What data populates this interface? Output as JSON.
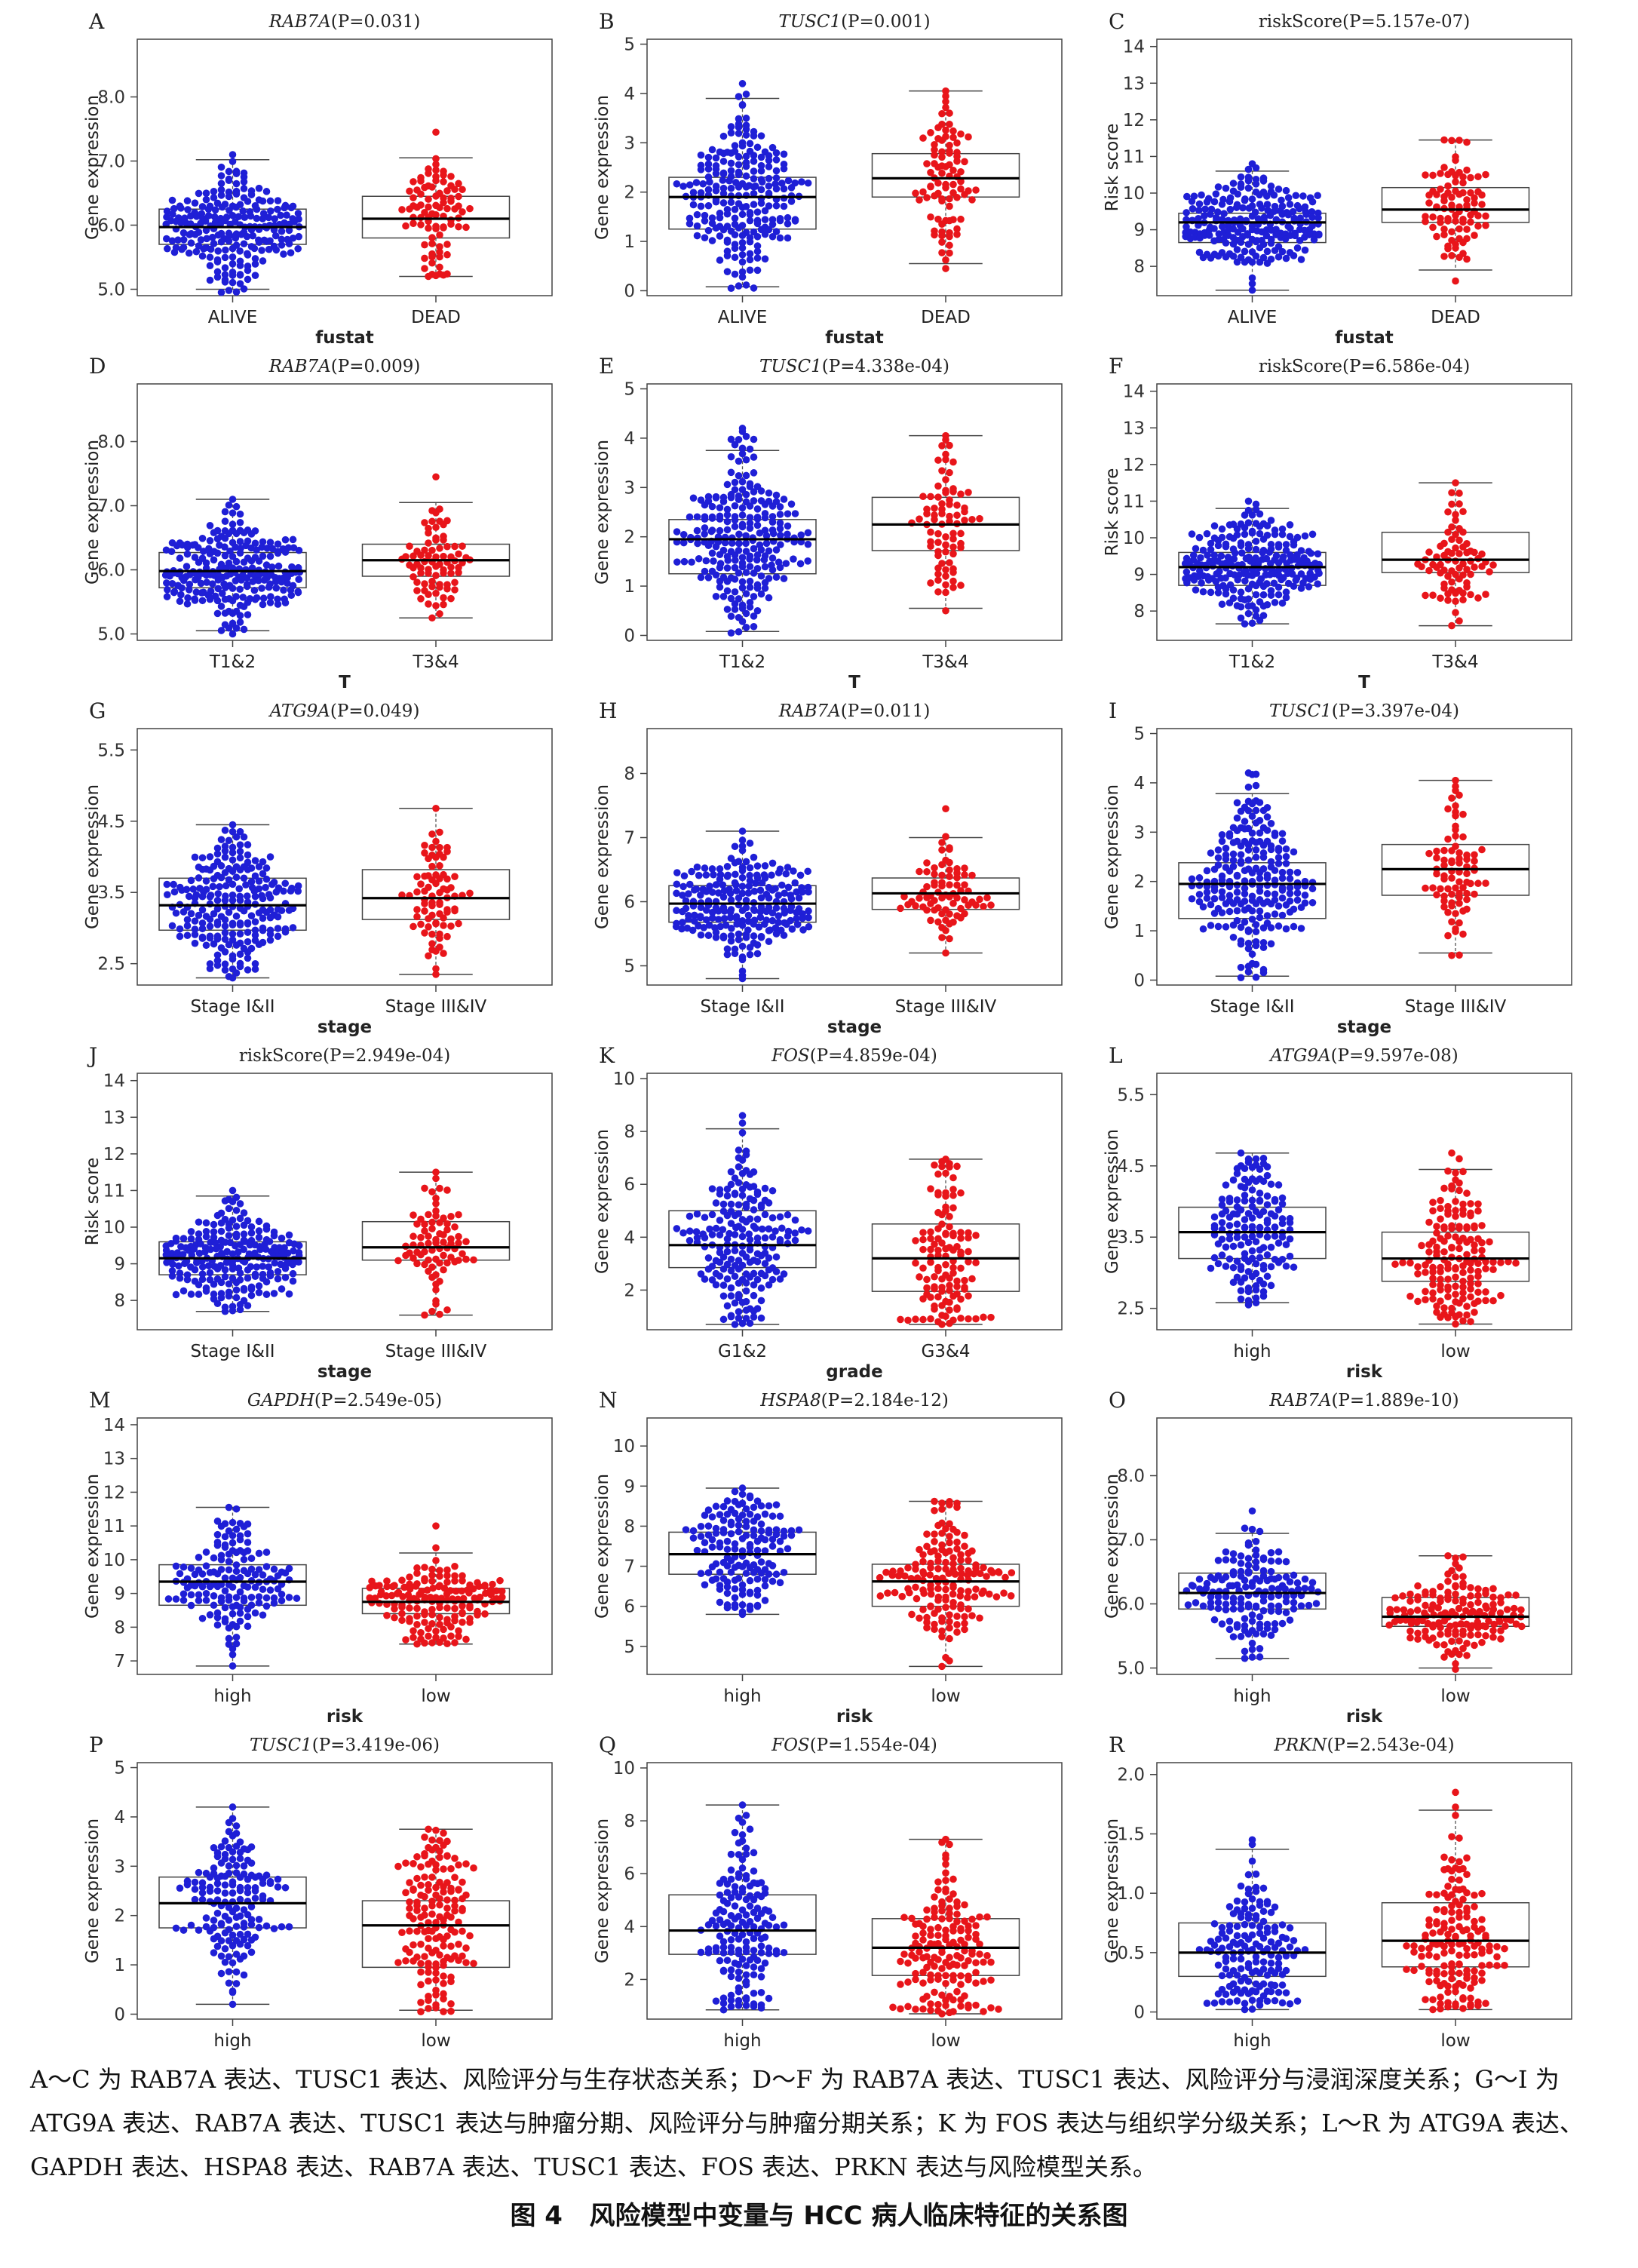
{
  "chart_data": [
    {
      "panel": "A",
      "gene": "RAB7A",
      "p": "(P=0.031)",
      "italic": true,
      "ylabel": "Gene expression",
      "xlabel": "fustat",
      "ylim": [
        4.9,
        8.9
      ],
      "yticks": [
        "5.0",
        "6.0",
        "7.0",
        "8.0"
      ],
      "groups": [
        {
          "name": "ALIVE",
          "color": "#1f1fd6",
          "min": 5.0,
          "q1": 5.7,
          "median": 5.97,
          "q3": 6.25,
          "max": 7.02,
          "top": 7.1,
          "bottom": 4.95,
          "n": 230
        },
        {
          "name": "DEAD",
          "color": "#e8151a",
          "min": 5.2,
          "q1": 5.8,
          "median": 6.1,
          "q3": 6.45,
          "max": 7.05,
          "top": 7.45,
          "bottom": 5.2,
          "n": 90
        }
      ]
    },
    {
      "panel": "B",
      "gene": "TUSC1",
      "p": "(P=0.001)",
      "italic": true,
      "ylabel": "Gene expression",
      "xlabel": "fustat",
      "ylim": [
        -0.1,
        5.1
      ],
      "yticks": [
        "0",
        "1",
        "2",
        "3",
        "4",
        "5"
      ],
      "groups": [
        {
          "name": "ALIVE",
          "color": "#1f1fd6",
          "min": 0.08,
          "q1": 1.25,
          "median": 1.9,
          "q3": 2.3,
          "max": 3.9,
          "top": 4.2,
          "bottom": 0.05,
          "n": 230
        },
        {
          "name": "DEAD",
          "color": "#e8151a",
          "min": 0.55,
          "q1": 1.9,
          "median": 2.28,
          "q3": 2.78,
          "max": 4.05,
          "top": 4.05,
          "bottom": 0.45,
          "n": 90
        }
      ]
    },
    {
      "panel": "C",
      "gene": "riskScore",
      "p": "(P=5.157e-07)",
      "italic": false,
      "ylabel": "Risk score",
      "xlabel": "fustat",
      "ylim": [
        7.2,
        14.2
      ],
      "yticks": [
        "8",
        "9",
        "10",
        "11",
        "12",
        "13",
        "14"
      ],
      "groups": [
        {
          "name": "ALIVE",
          "color": "#1f1fd6",
          "min": 7.35,
          "q1": 8.65,
          "median": 9.2,
          "q3": 9.45,
          "max": 10.6,
          "top": 10.8,
          "bottom": 7.35,
          "n": 230
        },
        {
          "name": "DEAD",
          "color": "#e8151a",
          "min": 7.9,
          "q1": 9.2,
          "median": 9.55,
          "q3": 10.15,
          "max": 11.45,
          "top": 11.45,
          "bottom": 7.6,
          "n": 90
        }
      ]
    },
    {
      "panel": "D",
      "gene": "RAB7A",
      "p": "(P=0.009)",
      "italic": true,
      "ylabel": "Gene expression",
      "xlabel": "T",
      "ylim": [
        4.9,
        8.9
      ],
      "yticks": [
        "5.0",
        "6.0",
        "7.0",
        "8.0"
      ],
      "groups": [
        {
          "name": "T1&2",
          "color": "#1f1fd6",
          "min": 5.05,
          "q1": 5.72,
          "median": 5.98,
          "q3": 6.27,
          "max": 7.1,
          "top": 7.1,
          "bottom": 5.0,
          "n": 240
        },
        {
          "name": "T3&4",
          "color": "#e8151a",
          "min": 5.25,
          "q1": 5.9,
          "median": 6.15,
          "q3": 6.4,
          "max": 7.05,
          "top": 7.45,
          "bottom": 5.25,
          "n": 80
        }
      ]
    },
    {
      "panel": "E",
      "gene": "TUSC1",
      "p": "(P=4.338e-04)",
      "italic": true,
      "ylabel": "Gene expression",
      "xlabel": "T",
      "ylim": [
        -0.1,
        5.1
      ],
      "yticks": [
        "0",
        "1",
        "2",
        "3",
        "4",
        "5"
      ],
      "groups": [
        {
          "name": "T1&2",
          "color": "#1f1fd6",
          "min": 0.08,
          "q1": 1.25,
          "median": 1.95,
          "q3": 2.35,
          "max": 3.75,
          "top": 4.2,
          "bottom": 0.05,
          "n": 240
        },
        {
          "name": "T3&4",
          "color": "#e8151a",
          "min": 0.55,
          "q1": 1.72,
          "median": 2.25,
          "q3": 2.8,
          "max": 4.05,
          "top": 4.05,
          "bottom": 0.5,
          "n": 80
        }
      ]
    },
    {
      "panel": "F",
      "gene": "riskScore",
      "p": "(P=6.586e-04)",
      "italic": false,
      "ylabel": "Risk score",
      "xlabel": "T",
      "ylim": [
        7.2,
        14.2
      ],
      "yticks": [
        "8",
        "9",
        "10",
        "11",
        "12",
        "13",
        "14"
      ],
      "groups": [
        {
          "name": "T1&2",
          "color": "#1f1fd6",
          "min": 7.65,
          "q1": 8.7,
          "median": 9.2,
          "q3": 9.6,
          "max": 10.8,
          "top": 11.0,
          "bottom": 7.65,
          "n": 240
        },
        {
          "name": "T3&4",
          "color": "#e8151a",
          "min": 7.6,
          "q1": 9.05,
          "median": 9.4,
          "q3": 10.15,
          "max": 11.5,
          "top": 11.5,
          "bottom": 7.6,
          "n": 80
        }
      ]
    },
    {
      "panel": "G",
      "gene": "ATG9A",
      "p": "(P=0.049)",
      "italic": true,
      "ylabel": "Gene expression",
      "xlabel": "stage",
      "ylim": [
        2.2,
        5.8
      ],
      "yticks": [
        "2.5",
        "3.5",
        "4.5",
        "5.5"
      ],
      "groups": [
        {
          "name": "Stage I&II",
          "color": "#1f1fd6",
          "min": 2.3,
          "q1": 2.97,
          "median": 3.32,
          "q3": 3.7,
          "max": 4.45,
          "top": 4.45,
          "bottom": 2.3,
          "n": 230
        },
        {
          "name": "Stage III&IV",
          "color": "#e8151a",
          "min": 2.35,
          "q1": 3.12,
          "median": 3.42,
          "q3": 3.82,
          "max": 4.68,
          "top": 4.68,
          "bottom": 2.35,
          "n": 80
        }
      ]
    },
    {
      "panel": "H",
      "gene": "RAB7A",
      "p": "(P=0.011)",
      "italic": true,
      "ylabel": "Gene expression",
      "xlabel": "stage",
      "ylim": [
        4.7,
        8.7
      ],
      "yticks": [
        "5",
        "6",
        "7",
        "8"
      ],
      "groups": [
        {
          "name": "Stage I&II",
          "color": "#1f1fd6",
          "min": 4.8,
          "q1": 5.68,
          "median": 5.97,
          "q3": 6.25,
          "max": 7.1,
          "top": 7.1,
          "bottom": 4.8,
          "n": 230
        },
        {
          "name": "Stage III&IV",
          "color": "#e8151a",
          "min": 5.2,
          "q1": 5.88,
          "median": 6.13,
          "q3": 6.37,
          "max": 7.0,
          "top": 7.45,
          "bottom": 5.2,
          "n": 80
        }
      ]
    },
    {
      "panel": "I",
      "gene": "TUSC1",
      "p": "(P=3.397e-04)",
      "italic": true,
      "ylabel": "Gene expression",
      "xlabel": "stage",
      "ylim": [
        -0.1,
        5.1
      ],
      "yticks": [
        "0",
        "1",
        "2",
        "3",
        "4",
        "5"
      ],
      "groups": [
        {
          "name": "Stage I&II",
          "color": "#1f1fd6",
          "min": 0.08,
          "q1": 1.25,
          "median": 1.95,
          "q3": 2.38,
          "max": 3.78,
          "top": 4.2,
          "bottom": 0.05,
          "n": 230
        },
        {
          "name": "Stage III&IV",
          "color": "#e8151a",
          "min": 0.55,
          "q1": 1.72,
          "median": 2.25,
          "q3": 2.75,
          "max": 4.05,
          "top": 4.05,
          "bottom": 0.5,
          "n": 80
        }
      ]
    },
    {
      "panel": "J",
      "gene": "riskScore",
      "p": "(P=2.949e-04)",
      "italic": false,
      "ylabel": "Risk score",
      "xlabel": "stage",
      "ylim": [
        7.2,
        14.2
      ],
      "yticks": [
        "8",
        "9",
        "10",
        "11",
        "12",
        "13",
        "14"
      ],
      "groups": [
        {
          "name": "Stage I&II",
          "color": "#1f1fd6",
          "min": 7.7,
          "q1": 8.7,
          "median": 9.15,
          "q3": 9.6,
          "max": 10.85,
          "top": 11.0,
          "bottom": 7.7,
          "n": 230
        },
        {
          "name": "Stage III&IV",
          "color": "#e8151a",
          "min": 7.6,
          "q1": 9.1,
          "median": 9.45,
          "q3": 10.15,
          "max": 11.5,
          "top": 11.5,
          "bottom": 7.6,
          "n": 80
        }
      ]
    },
    {
      "panel": "K",
      "gene": "FOS",
      "p": "(P=4.859e-04)",
      "italic": true,
      "ylabel": "Gene expression",
      "xlabel": "grade",
      "ylim": [
        0.5,
        10.2
      ],
      "yticks": [
        "2",
        "4",
        "6",
        "8",
        "10"
      ],
      "groups": [
        {
          "name": "G1&2",
          "color": "#1f1fd6",
          "min": 0.7,
          "q1": 2.85,
          "median": 3.7,
          "q3": 5.0,
          "max": 8.1,
          "top": 8.6,
          "bottom": 0.7,
          "n": 200
        },
        {
          "name": "G3&4",
          "color": "#e8151a",
          "min": 0.7,
          "q1": 1.95,
          "median": 3.2,
          "q3": 4.5,
          "max": 6.95,
          "top": 6.95,
          "bottom": 0.7,
          "n": 120
        }
      ]
    },
    {
      "panel": "L",
      "gene": "ATG9A",
      "p": "(P=9.597e-08)",
      "italic": true,
      "ylabel": "Gene expression",
      "xlabel": "risk",
      "ylim": [
        2.2,
        5.8
      ],
      "yticks": [
        "2.5",
        "3.5",
        "4.5",
        "5.5"
      ],
      "groups": [
        {
          "name": "high",
          "color": "#1f1fd6",
          "min": 2.58,
          "q1": 3.2,
          "median": 3.57,
          "q3": 3.92,
          "max": 4.68,
          "top": 4.68,
          "bottom": 2.55,
          "n": 160
        },
        {
          "name": "low",
          "color": "#e8151a",
          "min": 2.28,
          "q1": 2.88,
          "median": 3.2,
          "q3": 3.57,
          "max": 4.45,
          "top": 4.68,
          "bottom": 2.28,
          "n": 160
        }
      ]
    },
    {
      "panel": "M",
      "gene": "GAPDH",
      "p": "(P=2.549e-05)",
      "italic": true,
      "ylabel": "Gene expression",
      "xlabel": "risk",
      "ylim": [
        6.6,
        14.2
      ],
      "yticks": [
        "7",
        "8",
        "9",
        "10",
        "11",
        "12",
        "13",
        "14"
      ],
      "groups": [
        {
          "name": "high",
          "color": "#1f1fd6",
          "min": 6.85,
          "q1": 8.65,
          "median": 9.35,
          "q3": 9.85,
          "max": 11.55,
          "top": 11.55,
          "bottom": 6.85,
          "n": 160
        },
        {
          "name": "low",
          "color": "#e8151a",
          "min": 7.5,
          "q1": 8.4,
          "median": 8.75,
          "q3": 9.15,
          "max": 10.2,
          "top": 11.0,
          "bottom": 7.5,
          "n": 160
        }
      ]
    },
    {
      "panel": "N",
      "gene": "HSPA8",
      "p": "(P=2.184e-12)",
      "italic": true,
      "ylabel": "Gene expression",
      "xlabel": "risk",
      "ylim": [
        4.3,
        10.7
      ],
      "yticks": [
        "5",
        "6",
        "7",
        "8",
        "9",
        "10"
      ],
      "groups": [
        {
          "name": "high",
          "color": "#1f1fd6",
          "min": 5.8,
          "q1": 6.8,
          "median": 7.3,
          "q3": 7.85,
          "max": 8.95,
          "top": 8.95,
          "bottom": 5.8,
          "n": 160
        },
        {
          "name": "low",
          "color": "#e8151a",
          "min": 4.5,
          "q1": 6.0,
          "median": 6.62,
          "q3": 7.05,
          "max": 8.62,
          "top": 8.62,
          "bottom": 4.5,
          "n": 160
        }
      ]
    },
    {
      "panel": "O",
      "gene": "RAB7A",
      "p": "(P=1.889e-10)",
      "italic": true,
      "ylabel": "Gene expression",
      "xlabel": "risk",
      "ylim": [
        4.9,
        8.9
      ],
      "yticks": [
        "5.0",
        "6.0",
        "7.0",
        "8.0"
      ],
      "groups": [
        {
          "name": "high",
          "color": "#1f1fd6",
          "min": 5.15,
          "q1": 5.92,
          "median": 6.17,
          "q3": 6.48,
          "max": 7.1,
          "top": 7.45,
          "bottom": 5.15,
          "n": 160
        },
        {
          "name": "low",
          "color": "#e8151a",
          "min": 5.0,
          "q1": 5.65,
          "median": 5.8,
          "q3": 6.1,
          "max": 6.75,
          "top": 6.75,
          "bottom": 4.98,
          "n": 160
        }
      ]
    },
    {
      "panel": "P",
      "gene": "TUSC1",
      "p": "(P=3.419e-06)",
      "italic": true,
      "ylabel": "Gene expression",
      "xlabel": "risk",
      "ylim": [
        -0.1,
        5.1
      ],
      "yticks": [
        "0",
        "1",
        "2",
        "3",
        "4",
        "5"
      ],
      "groups": [
        {
          "name": "high",
          "color": "#1f1fd6",
          "min": 0.2,
          "q1": 1.75,
          "median": 2.25,
          "q3": 2.78,
          "max": 4.2,
          "top": 4.2,
          "bottom": 0.2,
          "n": 160
        },
        {
          "name": "low",
          "color": "#e8151a",
          "min": 0.08,
          "q1": 0.95,
          "median": 1.8,
          "q3": 2.3,
          "max": 3.75,
          "top": 3.75,
          "bottom": 0.05,
          "n": 160
        }
      ]
    },
    {
      "panel": "Q",
      "gene": "FOS",
      "p": "(P=1.554e-04)",
      "italic": true,
      "ylabel": "Gene expression",
      "xlabel": "risk",
      "ylim": [
        0.5,
        10.2
      ],
      "yticks": [
        "2",
        "4",
        "6",
        "8",
        "10"
      ],
      "groups": [
        {
          "name": "high",
          "color": "#1f1fd6",
          "min": 0.85,
          "q1": 2.95,
          "median": 3.85,
          "q3": 5.2,
          "max": 8.6,
          "top": 8.6,
          "bottom": 0.85,
          "n": 160
        },
        {
          "name": "low",
          "color": "#e8151a",
          "min": 0.7,
          "q1": 2.15,
          "median": 3.2,
          "q3": 4.3,
          "max": 7.3,
          "top": 7.3,
          "bottom": 0.7,
          "n": 160
        }
      ]
    },
    {
      "panel": "R",
      "gene": "PRKN",
      "p": "(P=2.543e-04)",
      "italic": true,
      "ylabel": "Gene expression",
      "xlabel": "risk",
      "ylim": [
        -0.06,
        2.1
      ],
      "yticks": [
        "0",
        "0.5",
        "1.0",
        "1.5",
        "2.0"
      ],
      "groups": [
        {
          "name": "high",
          "color": "#1f1fd6",
          "min": 0.02,
          "q1": 0.3,
          "median": 0.5,
          "q3": 0.75,
          "max": 1.37,
          "top": 1.45,
          "bottom": 0.02,
          "n": 160
        },
        {
          "name": "low",
          "color": "#e8151a",
          "min": 0.02,
          "q1": 0.38,
          "median": 0.6,
          "q3": 0.92,
          "max": 1.7,
          "top": 1.85,
          "bottom": 0.02,
          "n": 160
        }
      ]
    }
  ],
  "caption": {
    "line1": "A～C 为 RAB7A 表达、TUSC1 表达、风险评分与生存状态关系；D～F 为 RAB7A 表达、TUSC1 表达、风险评分与浸润深度关系；G～I 为",
    "line2": "ATG9A 表达、RAB7A 表达、TUSC1 表达与肿瘤分期、风险评分与肿瘤分期关系；K 为 FOS 表达与组织学分级关系；L～R 为 ATG9A 表达、",
    "line3": "GAPDH 表达、HSPA8 表达、RAB7A 表达、TUSC1 表达、FOS 表达、PRKN 表达与风险模型关系。"
  },
  "figure_title": {
    "label": "图 4",
    "text": "风险模型中变量与 HCC 病人临床特征的关系图"
  }
}
